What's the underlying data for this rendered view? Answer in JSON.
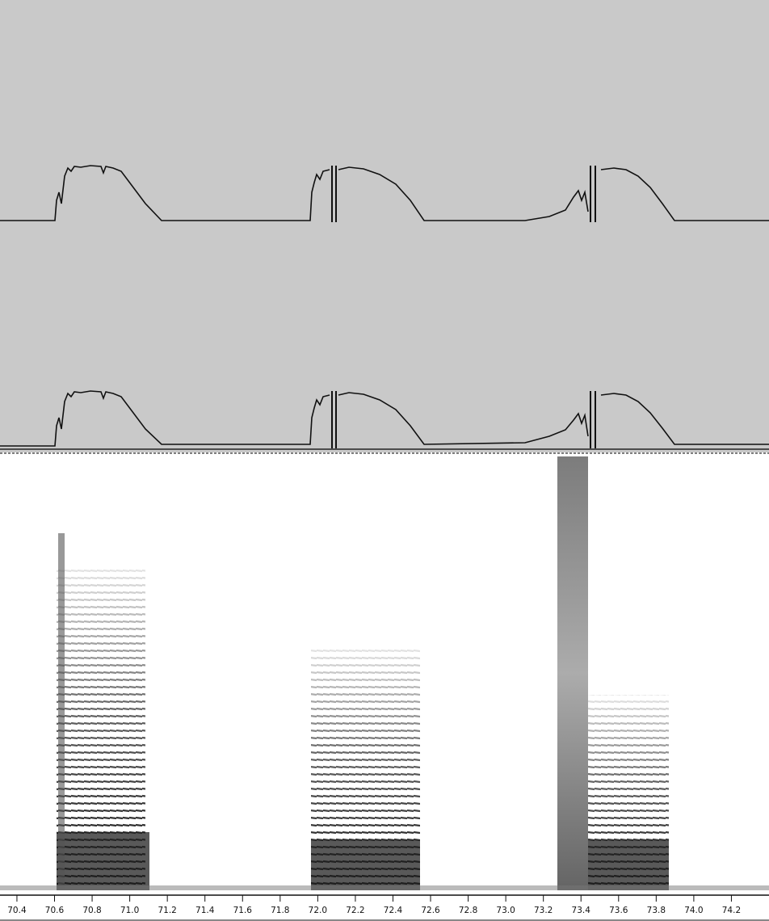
{
  "chart_data": {
    "type": "spectrogram",
    "xlim": [
      70.31,
      74.4
    ],
    "xticks": [
      70.4,
      70.6,
      70.8,
      {
        "value": 71,
        "label": "71.0"
      },
      71.2,
      71.4,
      71.6,
      71.8,
      {
        "value": 72,
        "label": "72.0"
      },
      72.2,
      72.4,
      72.6,
      72.8,
      {
        "value": 73,
        "label": "73.0"
      },
      73.2,
      73.4,
      73.6,
      73.8,
      {
        "value": 74,
        "label": "74.0"
      },
      74.2
    ]
  }
}
